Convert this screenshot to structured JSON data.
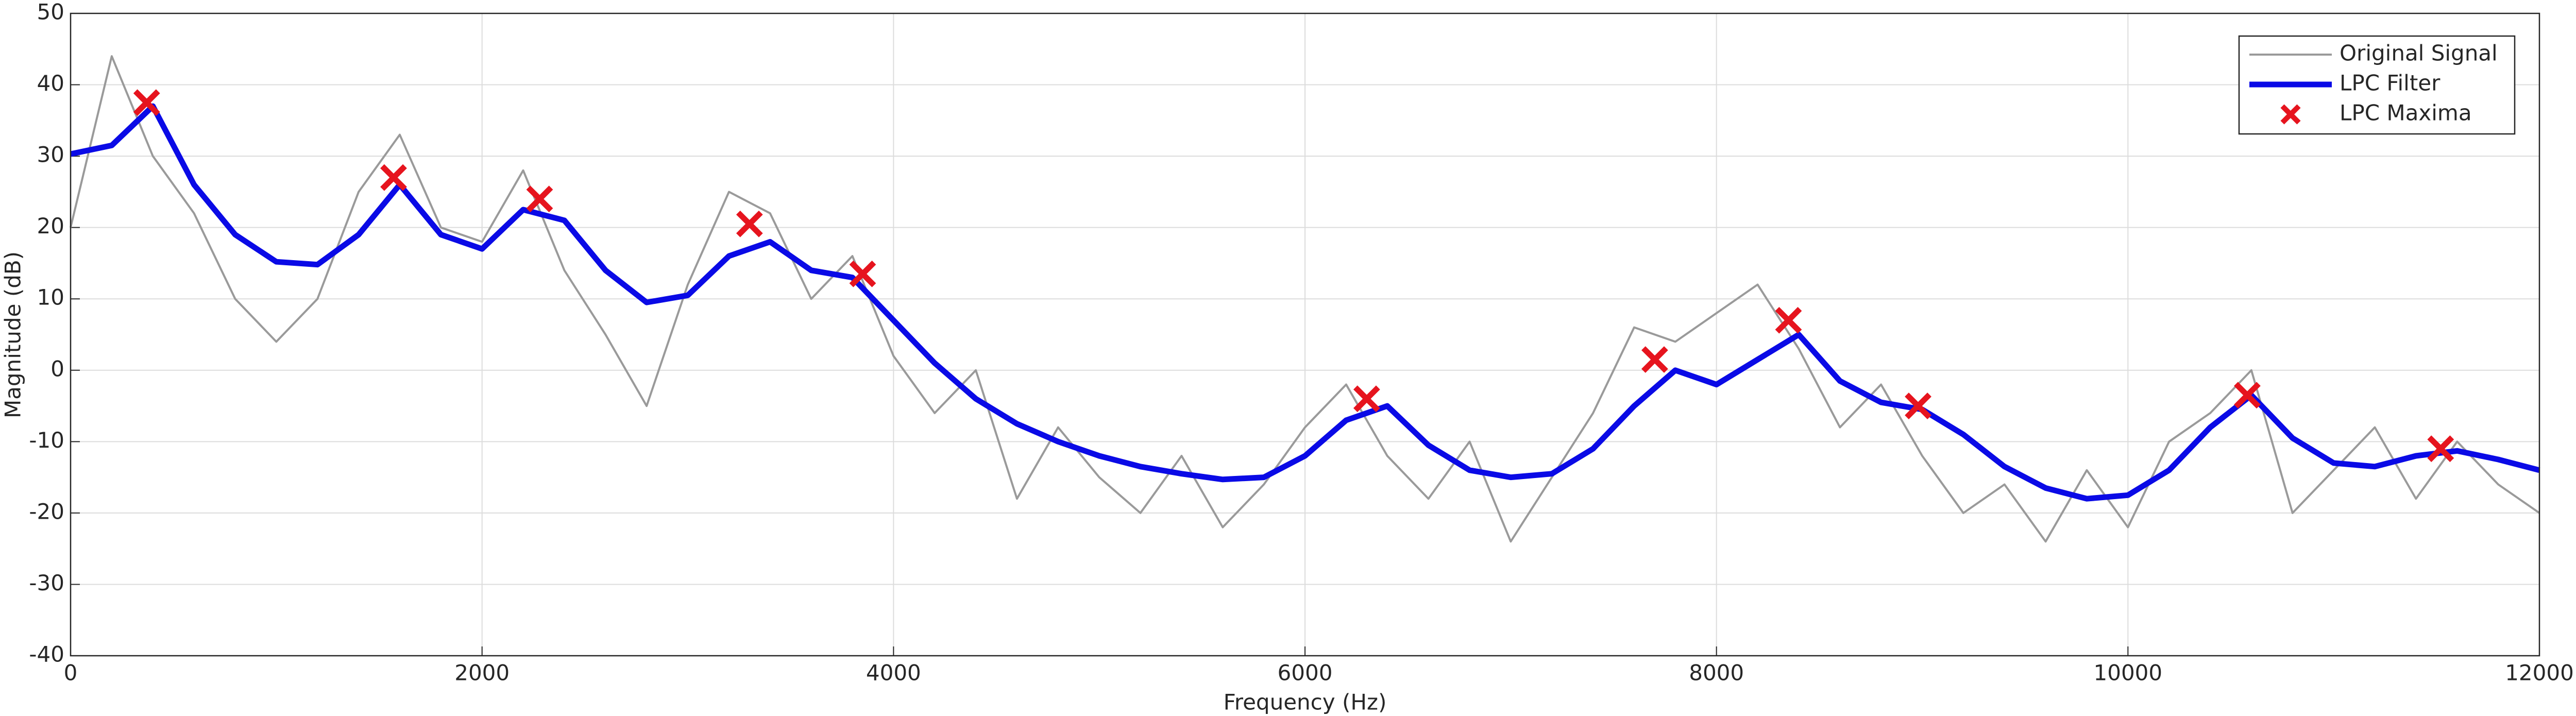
{
  "chart_data": {
    "type": "line",
    "xlabel": "Frequency (Hz)",
    "ylabel": "Magnitude (dB)",
    "x": [
      0,
      200,
      400,
      600,
      800,
      1000,
      1200,
      1400,
      1600,
      1800,
      2000,
      2200,
      2400,
      2600,
      2800,
      3000,
      3200,
      3400,
      3600,
      3800,
      4000,
      4200,
      4400,
      4600,
      4800,
      5000,
      5200,
      5400,
      5600,
      5800,
      6000,
      6200,
      6400,
      6600,
      6800,
      7000,
      7200,
      7400,
      7600,
      7800,
      8000,
      8200,
      8400,
      8600,
      8800,
      9000,
      9200,
      9400,
      9600,
      9800,
      10000,
      10200,
      10400,
      10600,
      10800,
      11000,
      11200,
      11400,
      11600,
      11800,
      12000
    ],
    "series": [
      {
        "name": "Original Signal",
        "color": "#9a9a9a",
        "style": "line",
        "values": [
          20,
          44,
          30,
          22,
          10,
          4,
          10,
          25,
          33,
          20,
          18,
          28,
          14,
          5,
          -5,
          12,
          25,
          22,
          10,
          16,
          2,
          -6,
          0,
          -18,
          -8,
          -15,
          -20,
          -12,
          -22,
          -16,
          -8,
          -2,
          -12,
          -18,
          -10,
          -24,
          -15,
          -6,
          6,
          4,
          8,
          12,
          3,
          -8,
          -2,
          -12,
          -20,
          -16,
          -24,
          -14,
          -22,
          -10,
          -6,
          0,
          -20,
          -14,
          -8,
          -18,
          -10,
          -16,
          -20
        ]
      },
      {
        "name": "LPC Filter",
        "color": "#0a0ae6",
        "style": "line",
        "values": [
          30.3,
          31.5,
          37,
          26,
          19,
          15.2,
          14.8,
          19,
          26,
          19,
          17,
          22.5,
          21,
          14,
          9.5,
          10.5,
          16,
          18,
          14,
          13,
          7,
          1,
          -4,
          -7.5,
          -10,
          -12,
          -13.5,
          -14.5,
          -15.3,
          -15,
          -12,
          -7,
          -5,
          -10.5,
          -14,
          -15,
          -14.5,
          -11,
          -5,
          0,
          -2,
          1.5,
          5,
          -1.5,
          -4.5,
          -5.5,
          -9,
          -13.5,
          -16.5,
          -18,
          -17.5,
          -14,
          -8,
          -3.5,
          -9.5,
          -13,
          -13.5,
          -12,
          -11.3,
          -12.5,
          -14
        ]
      },
      {
        "name": "LPC Maxima",
        "color": "#e6141e",
        "style": "x",
        "x": [
          370,
          1570,
          2280,
          3300,
          3850,
          6300,
          7700,
          8350,
          8980,
          10580,
          11520
        ],
        "values": [
          37.5,
          27,
          24,
          20.5,
          13.5,
          -4,
          1.5,
          7,
          -5,
          -3.5,
          -11
        ]
      }
    ],
    "xlim": [
      0,
      12000
    ],
    "xticks": [
      0,
      2000,
      4000,
      6000,
      8000,
      10000,
      12000
    ],
    "ylim": [
      -40,
      50
    ],
    "yticks": [
      -40,
      -30,
      -20,
      -10,
      0,
      10,
      20,
      30,
      40,
      50
    ],
    "grid": true,
    "legend": "upper-right"
  }
}
